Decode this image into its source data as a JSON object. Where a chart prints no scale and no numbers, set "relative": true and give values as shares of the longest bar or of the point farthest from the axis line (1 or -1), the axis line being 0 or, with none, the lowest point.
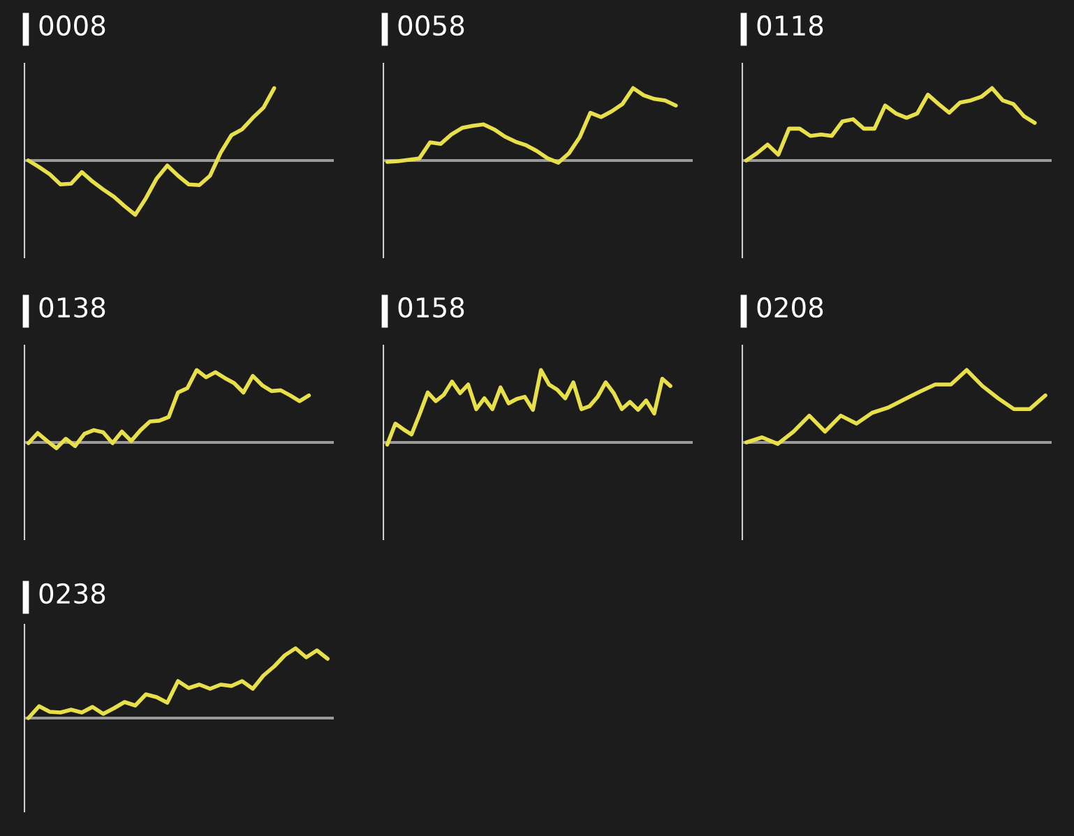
{
  "chart_data": [
    {
      "type": "line",
      "title": "0008",
      "relative": true,
      "color": "#e8e04a",
      "categories": [
        null,
        null,
        null,
        null,
        null,
        null,
        null,
        null,
        null,
        null,
        null,
        null,
        null,
        null,
        null,
        null,
        null,
        null,
        null,
        null,
        null,
        null,
        null,
        null,
        null,
        null,
        null,
        null,
        null
      ],
      "values": [
        0,
        -0.09,
        -0.19,
        -0.33,
        -0.32,
        -0.16,
        -0.29,
        -0.4,
        -0.5,
        -0.63,
        -0.75,
        -0.52,
        -0.25,
        -0.07,
        -0.21,
        -0.33,
        -0.34,
        -0.21,
        0.11,
        0.35,
        0.43,
        0.59,
        0.73,
        1.0,
        null,
        null,
        null,
        null,
        null
      ]
    },
    {
      "type": "line",
      "title": "0058",
      "relative": true,
      "color": "#e8e04a",
      "categories": [
        null,
        null,
        null,
        null,
        null,
        null,
        null,
        null,
        null,
        null,
        null,
        null,
        null,
        null,
        null,
        null,
        null,
        null,
        null,
        null,
        null,
        null,
        null,
        null,
        null,
        null,
        null,
        null,
        null
      ],
      "values": [
        -0.02,
        -0.01,
        0.01,
        0.03,
        0.25,
        0.23,
        0.36,
        0.45,
        0.48,
        0.5,
        0.43,
        0.33,
        0.26,
        0.21,
        0.13,
        0.03,
        -0.03,
        0.1,
        0.32,
        0.66,
        0.6,
        0.68,
        0.78,
        1.0,
        0.9,
        0.85,
        0.83,
        0.76,
        null
      ]
    },
    {
      "type": "line",
      "title": "0118",
      "relative": true,
      "color": "#e8e04a",
      "categories": [
        null,
        null,
        null,
        null,
        null,
        null,
        null,
        null,
        null,
        null,
        null,
        null,
        null,
        null,
        null,
        null,
        null,
        null,
        null,
        null,
        null,
        null,
        null,
        null,
        null,
        null,
        null,
        null,
        null
      ],
      "values": [
        0,
        0.1,
        0.22,
        0.08,
        0.44,
        0.44,
        0.34,
        0.36,
        0.34,
        0.54,
        0.57,
        0.44,
        0.44,
        0.76,
        0.65,
        0.59,
        0.65,
        0.91,
        0.78,
        0.66,
        0.8,
        0.83,
        0.88,
        1.0,
        0.83,
        0.78,
        0.61,
        0.52,
        null
      ]
    },
    {
      "type": "line",
      "title": "0138",
      "relative": true,
      "color": "#e8e04a",
      "categories": [
        null,
        null,
        null,
        null,
        null,
        null,
        null,
        null,
        null,
        null,
        null,
        null,
        null,
        null,
        null,
        null,
        null,
        null,
        null,
        null,
        null,
        null,
        null,
        null,
        null,
        null,
        null,
        null,
        null,
        null,
        null,
        null,
        null
      ],
      "values": [
        -0.01,
        0.13,
        0.02,
        -0.08,
        0.05,
        -0.05,
        0.12,
        0.17,
        0.14,
        -0.01,
        0.15,
        0.02,
        0.17,
        0.29,
        0.3,
        0.35,
        0.69,
        0.75,
        1.0,
        0.9,
        0.97,
        0.89,
        0.82,
        0.69,
        0.92,
        0.79,
        0.71,
        0.72,
        0.65,
        0.57,
        0.65,
        null,
        null
      ]
    },
    {
      "type": "line",
      "title": "0158",
      "relative": true,
      "color": "#e8e04a",
      "categories": [
        null,
        null,
        null,
        null,
        null,
        null,
        null,
        null,
        null,
        null,
        null,
        null,
        null,
        null,
        null,
        null,
        null,
        null,
        null,
        null,
        null,
        null,
        null,
        null,
        null,
        null,
        null,
        null,
        null,
        null,
        null,
        null,
        null,
        null,
        null,
        null,
        null,
        null
      ],
      "values": [
        -0.03,
        0.26,
        0.18,
        0.11,
        0.39,
        0.69,
        0.57,
        0.66,
        0.84,
        0.68,
        0.8,
        0.46,
        0.61,
        0.46,
        0.76,
        0.54,
        0.6,
        0.63,
        0.45,
        1.0,
        0.8,
        0.73,
        0.61,
        0.83,
        0.46,
        0.5,
        0.63,
        0.83,
        0.68,
        0.46,
        0.56,
        0.45,
        0.58,
        0.4,
        0.88,
        0.78,
        null,
        null
      ]
    },
    {
      "type": "line",
      "title": "0208",
      "relative": true,
      "color": "#e8e04a",
      "categories": [
        null,
        null,
        null,
        null,
        null,
        null,
        null,
        null,
        null,
        null,
        null,
        null,
        null,
        null,
        null,
        null,
        null,
        null,
        null,
        null
      ],
      "values": [
        0,
        0.07,
        -0.02,
        0.15,
        0.37,
        0.15,
        0.37,
        0.26,
        0.41,
        0.48,
        0.59,
        0.7,
        0.8,
        0.8,
        1.0,
        0.78,
        0.61,
        0.46,
        0.46,
        0.65
      ]
    },
    {
      "type": "line",
      "title": "0238",
      "relative": true,
      "color": "#e8e04a",
      "categories": [
        null,
        null,
        null,
        null,
        null,
        null,
        null,
        null,
        null,
        null,
        null,
        null,
        null,
        null,
        null,
        null,
        null,
        null,
        null,
        null,
        null,
        null,
        null,
        null,
        null,
        null,
        null,
        null,
        null
      ],
      "values": [
        0,
        0.17,
        0.09,
        0.08,
        0.12,
        0.08,
        0.16,
        0.06,
        0.14,
        0.23,
        0.18,
        0.34,
        0.3,
        0.22,
        0.53,
        0.43,
        0.48,
        0.42,
        0.48,
        0.46,
        0.53,
        0.42,
        0.61,
        0.74,
        0.9,
        1.0,
        0.87,
        0.97,
        0.85
      ]
    }
  ]
}
